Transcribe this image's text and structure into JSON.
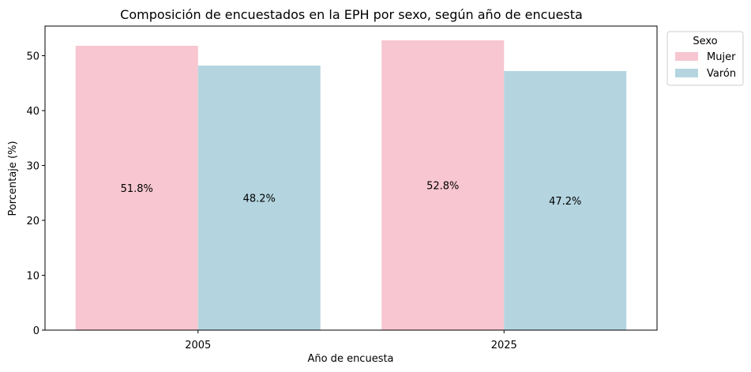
{
  "chart_data": {
    "type": "bar",
    "title": "Composición de encuestados en la EPH por sexo, según año de encuesta",
    "xlabel": "Año de encuesta",
    "ylabel": "Porcentaje (%)",
    "categories": [
      "2005",
      "2025"
    ],
    "series": [
      {
        "name": "Mujer",
        "values": [
          51.8,
          52.8
        ],
        "labels": [
          "51.8%",
          "52.8%"
        ],
        "color": "#F7C6D0"
      },
      {
        "name": "Varón",
        "values": [
          48.2,
          47.2
        ],
        "labels": [
          "48.2%",
          "47.2%"
        ],
        "color": "#B4D5E0"
      }
    ],
    "ylim": [
      0,
      55.4
    ],
    "yticks": [
      0,
      10,
      20,
      30,
      40,
      50
    ],
    "grid": false,
    "legend": {
      "title": "Sexo",
      "position": "outside-top-right"
    }
  }
}
